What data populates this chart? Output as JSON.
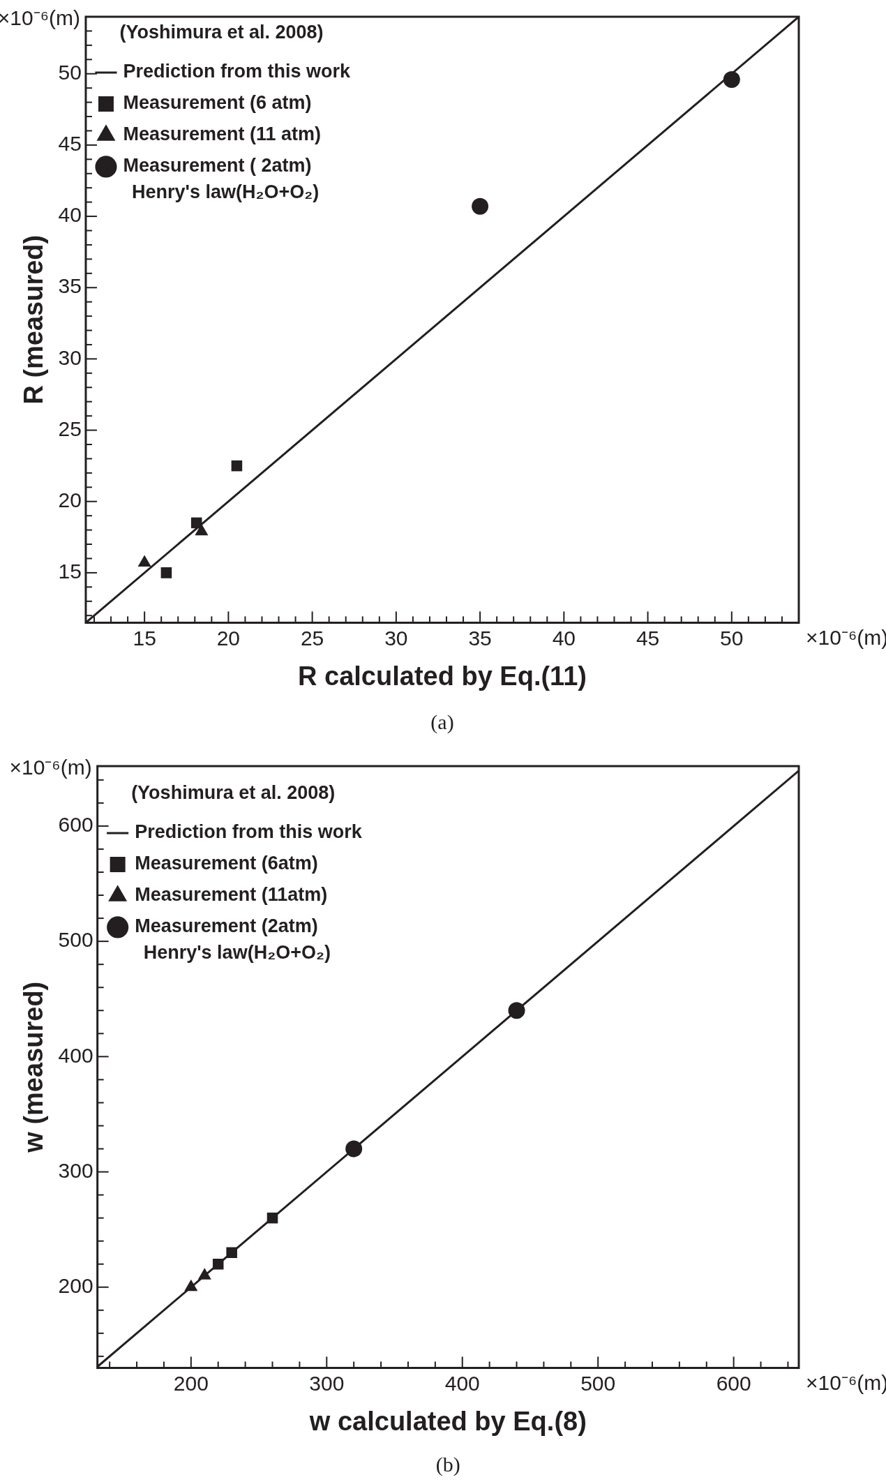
{
  "chart_data": [
    {
      "type": "scatter",
      "xlabel": "R calculated by Eq.(11)",
      "ylabel": "R (measured)",
      "legend_title": "(Yoshimura et al. 2008)",
      "legend": "top left",
      "grid": false,
      "xlim": [
        11.5,
        54
      ],
      "ylim": [
        11.5,
        54
      ],
      "xticks": [
        {
          "value": 12,
          "label": null
        },
        {
          "value": 13,
          "label": null
        },
        {
          "value": 14,
          "label": null
        },
        15,
        {
          "value": 16,
          "label": null
        },
        {
          "value": 17,
          "label": null
        },
        {
          "value": 18,
          "label": null
        },
        {
          "value": 19,
          "label": null
        },
        20,
        {
          "value": 21,
          "label": null
        },
        {
          "value": 22,
          "label": null
        },
        {
          "value": 23,
          "label": null
        },
        {
          "value": 24,
          "label": null
        },
        25,
        {
          "value": 26,
          "label": null
        },
        {
          "value": 27,
          "label": null
        },
        {
          "value": 28,
          "label": null
        },
        {
          "value": 29,
          "label": null
        },
        30,
        {
          "value": 31,
          "label": null
        },
        {
          "value": 32,
          "label": null
        },
        {
          "value": 33,
          "label": null
        },
        {
          "value": 34,
          "label": null
        },
        35,
        {
          "value": 36,
          "label": null
        },
        {
          "value": 37,
          "label": null
        },
        {
          "value": 38,
          "label": null
        },
        {
          "value": 39,
          "label": null
        },
        40,
        {
          "value": 41,
          "label": null
        },
        {
          "value": 42,
          "label": null
        },
        {
          "value": 43,
          "label": null
        },
        {
          "value": 44,
          "label": null
        },
        45,
        {
          "value": 46,
          "label": null
        },
        {
          "value": 47,
          "label": null
        },
        {
          "value": 48,
          "label": null
        },
        {
          "value": 49,
          "label": null
        },
        50,
        {
          "value": 51,
          "label": null
        },
        {
          "value": 52,
          "label": null
        },
        {
          "value": 53,
          "label": null
        }
      ],
      "yticks": [
        {
          "value": 12,
          "label": null
        },
        {
          "value": 13,
          "label": null
        },
        {
          "value": 14,
          "label": null
        },
        15,
        {
          "value": 16,
          "label": null
        },
        {
          "value": 17,
          "label": null
        },
        {
          "value": 18,
          "label": null
        },
        {
          "value": 19,
          "label": null
        },
        20,
        {
          "value": 21,
          "label": null
        },
        {
          "value": 22,
          "label": null
        },
        {
          "value": 23,
          "label": null
        },
        {
          "value": 24,
          "label": null
        },
        25,
        {
          "value": 26,
          "label": null
        },
        {
          "value": 27,
          "label": null
        },
        {
          "value": 28,
          "label": null
        },
        {
          "value": 29,
          "label": null
        },
        30,
        {
          "value": 31,
          "label": null
        },
        {
          "value": 32,
          "label": null
        },
        {
          "value": 33,
          "label": null
        },
        {
          "value": 34,
          "label": null
        },
        35,
        {
          "value": 36,
          "label": null
        },
        {
          "value": 37,
          "label": null
        },
        {
          "value": 38,
          "label": null
        },
        {
          "value": 39,
          "label": null
        },
        40,
        {
          "value": 41,
          "label": null
        },
        {
          "value": 42,
          "label": null
        },
        {
          "value": 43,
          "label": null
        },
        {
          "value": 44,
          "label": null
        },
        45,
        {
          "value": 46,
          "label": null
        },
        {
          "value": 47,
          "label": null
        },
        {
          "value": 48,
          "label": null
        },
        {
          "value": 49,
          "label": null
        },
        50,
        {
          "value": 51,
          "label": null
        },
        {
          "value": 52,
          "label": null
        },
        {
          "value": 53,
          "label": null
        }
      ],
      "series": [
        {
          "name": "Prediction from this work",
          "type": "line",
          "color": "#231f20",
          "marker": "none",
          "line_style": "solid",
          "x": [
            11.5,
            54
          ],
          "values": [
            11.5,
            54
          ]
        },
        {
          "name": "Measurement (6 atm)",
          "color": "#231f20",
          "marker": "square",
          "x": [
            16.3,
            18.1,
            20.5
          ],
          "values": [
            15,
            18.5,
            22.5
          ]
        },
        {
          "name": "Measurement (11 atm)",
          "color": "#231f20",
          "marker": "triangle",
          "x": [
            15,
            18.4
          ],
          "values": [
            15.7,
            17.9
          ]
        },
        {
          "name": "Measurement ( 2atm)",
          "color": "#231f20",
          "marker": "circle",
          "x": [
            35,
            50
          ],
          "values": [
            40.7,
            49.6
          ]
        }
      ],
      "annotations": [
        "×10⁻⁶(m)",
        "×10⁻⁶(m)",
        "Henry's law(H₂O+O₂)",
        "(a)"
      ]
    },
    {
      "type": "scatter",
      "xlabel": "w calculated by Eq.(8)",
      "ylabel": "w (measured)",
      "legend_title": "(Yoshimura et al. 2008)",
      "legend": "top left",
      "grid": false,
      "xlim": [
        131,
        648
      ],
      "ylim": [
        130,
        652
      ],
      "xticks": [
        {
          "value": 140,
          "label": null
        },
        {
          "value": 160,
          "label": null
        },
        {
          "value": 180,
          "label": null
        },
        200,
        {
          "value": 220,
          "label": null
        },
        {
          "value": 240,
          "label": null
        },
        {
          "value": 260,
          "label": null
        },
        {
          "value": 280,
          "label": null
        },
        300,
        {
          "value": 320,
          "label": null
        },
        {
          "value": 340,
          "label": null
        },
        {
          "value": 360,
          "label": null
        },
        {
          "value": 380,
          "label": null
        },
        400,
        {
          "value": 420,
          "label": null
        },
        {
          "value": 440,
          "label": null
        },
        {
          "value": 460,
          "label": null
        },
        {
          "value": 480,
          "label": null
        },
        500,
        {
          "value": 520,
          "label": null
        },
        {
          "value": 540,
          "label": null
        },
        {
          "value": 560,
          "label": null
        },
        {
          "value": 580,
          "label": null
        },
        600,
        {
          "value": 620,
          "label": null
        },
        {
          "value": 640,
          "label": null
        }
      ],
      "yticks": [
        {
          "value": 140,
          "label": null
        },
        {
          "value": 160,
          "label": null
        },
        {
          "value": 180,
          "label": null
        },
        200,
        {
          "value": 220,
          "label": null
        },
        {
          "value": 240,
          "label": null
        },
        {
          "value": 260,
          "label": null
        },
        {
          "value": 280,
          "label": null
        },
        300,
        {
          "value": 320,
          "label": null
        },
        {
          "value": 340,
          "label": null
        },
        {
          "value": 360,
          "label": null
        },
        {
          "value": 380,
          "label": null
        },
        400,
        {
          "value": 420,
          "label": null
        },
        {
          "value": 440,
          "label": null
        },
        {
          "value": 460,
          "label": null
        },
        {
          "value": 480,
          "label": null
        },
        500,
        {
          "value": 520,
          "label": null
        },
        {
          "value": 540,
          "label": null
        },
        {
          "value": 560,
          "label": null
        },
        {
          "value": 580,
          "label": null
        },
        600,
        {
          "value": 620,
          "label": null
        },
        {
          "value": 640,
          "label": null
        }
      ],
      "series": [
        {
          "name": "Prediction from this work",
          "type": "line",
          "color": "#231f20",
          "marker": "none",
          "line_style": "solid",
          "x": [
            131,
            648
          ],
          "values": [
            131,
            648
          ]
        },
        {
          "name": "Measurement (6atm)",
          "color": "#231f20",
          "marker": "square",
          "x": [
            220,
            230,
            260
          ],
          "values": [
            220,
            230,
            260
          ]
        },
        {
          "name": "Measurement (11atm)",
          "color": "#231f20",
          "marker": "triangle",
          "x": [
            200,
            210
          ],
          "values": [
            200,
            210
          ]
        },
        {
          "name": "Measurement (2atm)",
          "color": "#231f20",
          "marker": "circle",
          "x": [
            320,
            440
          ],
          "values": [
            320,
            440
          ]
        }
      ],
      "annotations": [
        "×10⁻⁶(m)",
        "×10⁻⁶(m)",
        "Henry's law(H₂O+O₂)",
        "(b)"
      ]
    }
  ]
}
